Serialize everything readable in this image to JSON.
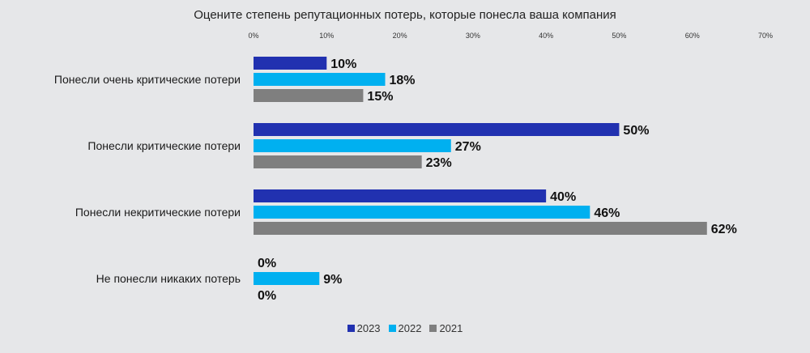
{
  "chart_data": {
    "type": "bar",
    "orientation": "horizontal",
    "title": "Оцените степень репутационных потерь, которые понесла ваша компания",
    "categories": [
      "Понесли очень критические потери",
      "Понесли критические потери",
      "Понесли некритические потери",
      "Не понесли никаких потерь"
    ],
    "series": [
      {
        "name": "2023",
        "color": "#2131b0",
        "values": [
          10,
          50,
          40,
          0
        ]
      },
      {
        "name": "2022",
        "color": "#00b0f0",
        "values": [
          18,
          27,
          46,
          9
        ]
      },
      {
        "name": "2021",
        "color": "#7f7f7f",
        "values": [
          15,
          23,
          62,
          0
        ]
      }
    ],
    "xlim": [
      0,
      70
    ],
    "xticks": [
      "0%",
      "10%",
      "20%",
      "30%",
      "40%",
      "50%",
      "60%",
      "70%"
    ],
    "value_suffix": "%",
    "legend": "bottom",
    "grid": false
  }
}
